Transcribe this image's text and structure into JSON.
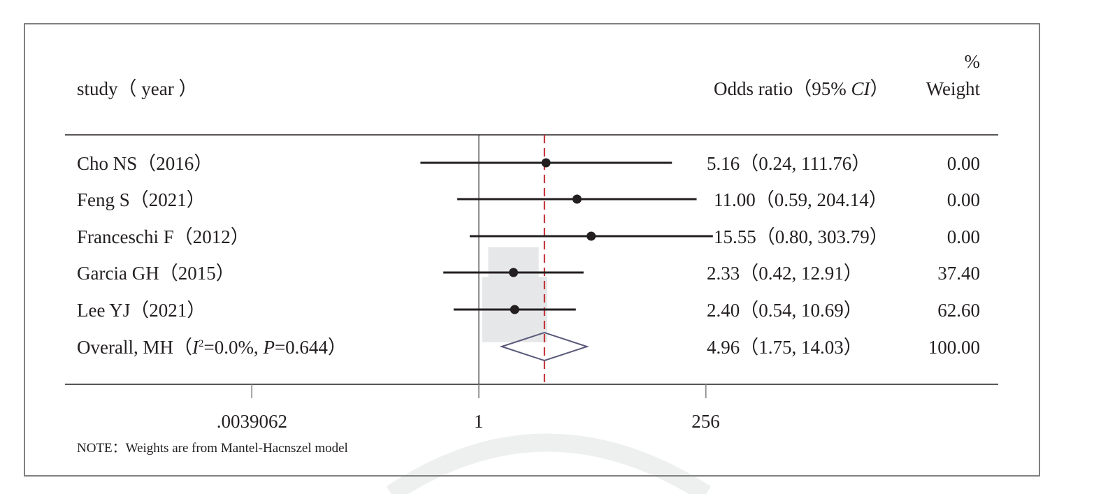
{
  "chart_data": {
    "type": "forest",
    "title": "",
    "header": {
      "study_label": "study（ year ）",
      "or_label_prefix": "Odds ratio（95% ",
      "or_label_ci": "CI",
      "or_label_suffix": "）",
      "weight_label_top": "%",
      "weight_label": "Weight"
    },
    "studies": [
      {
        "name": "Cho NS（2016）",
        "or": 5.16,
        "lower": 0.24,
        "upper": 111.76,
        "or_text": "5.16（0.24, 111.76）",
        "weight": 0.0,
        "weight_text": "0.00"
      },
      {
        "name": "Feng S（2021）",
        "or": 11.0,
        "lower": 0.59,
        "upper": 204.14,
        "or_text": "11.00（0.59, 204.14）",
        "weight": 0.0,
        "weight_text": "0.00"
      },
      {
        "name": "Franceschi F（2012）",
        "or": 15.55,
        "lower": 0.8,
        "upper": 303.79,
        "or_text": "15.55（0.80, 303.79）",
        "weight": 0.0,
        "weight_text": "0.00"
      },
      {
        "name": "Garcia GH（2015）",
        "or": 2.33,
        "lower": 0.42,
        "upper": 12.91,
        "or_text": "2.33（0.42, 12.91）",
        "weight": 37.4,
        "weight_text": "37.40"
      },
      {
        "name": "Lee YJ（2021）",
        "or": 2.4,
        "lower": 0.54,
        "upper": 10.69,
        "or_text": "2.40（0.54, 10.69）",
        "weight": 62.6,
        "weight_text": "62.60"
      }
    ],
    "overall": {
      "name_prefix": "Overall, MH（",
      "i2_symbol": "I",
      "i2_sup": "2",
      "i2_value": "=0.0%, ",
      "p_symbol": "P",
      "p_value": "=0.644）",
      "or": 4.96,
      "lower": 1.75,
      "upper": 14.03,
      "or_text": "4.96（1.75, 14.03）",
      "weight": 100.0,
      "weight_text": "100.00"
    },
    "x_axis": {
      "scale": "log",
      "ticks": [
        0.0039062,
        1,
        256
      ],
      "tick_labels": [
        ".0039062",
        "1",
        "256"
      ],
      "range": [
        0.0039062,
        256
      ],
      "null_line": 1
    },
    "note": "NOTE：Weights are from Mantel-Hacnszel model",
    "colors": {
      "ci_line": "#231f20",
      "point": "#231f20",
      "weight_box": "#e6e7e8",
      "overall_line": "#c1272d",
      "diamond": "#5a5a7a",
      "axis": "#231f20",
      "frame": "#808080"
    }
  }
}
